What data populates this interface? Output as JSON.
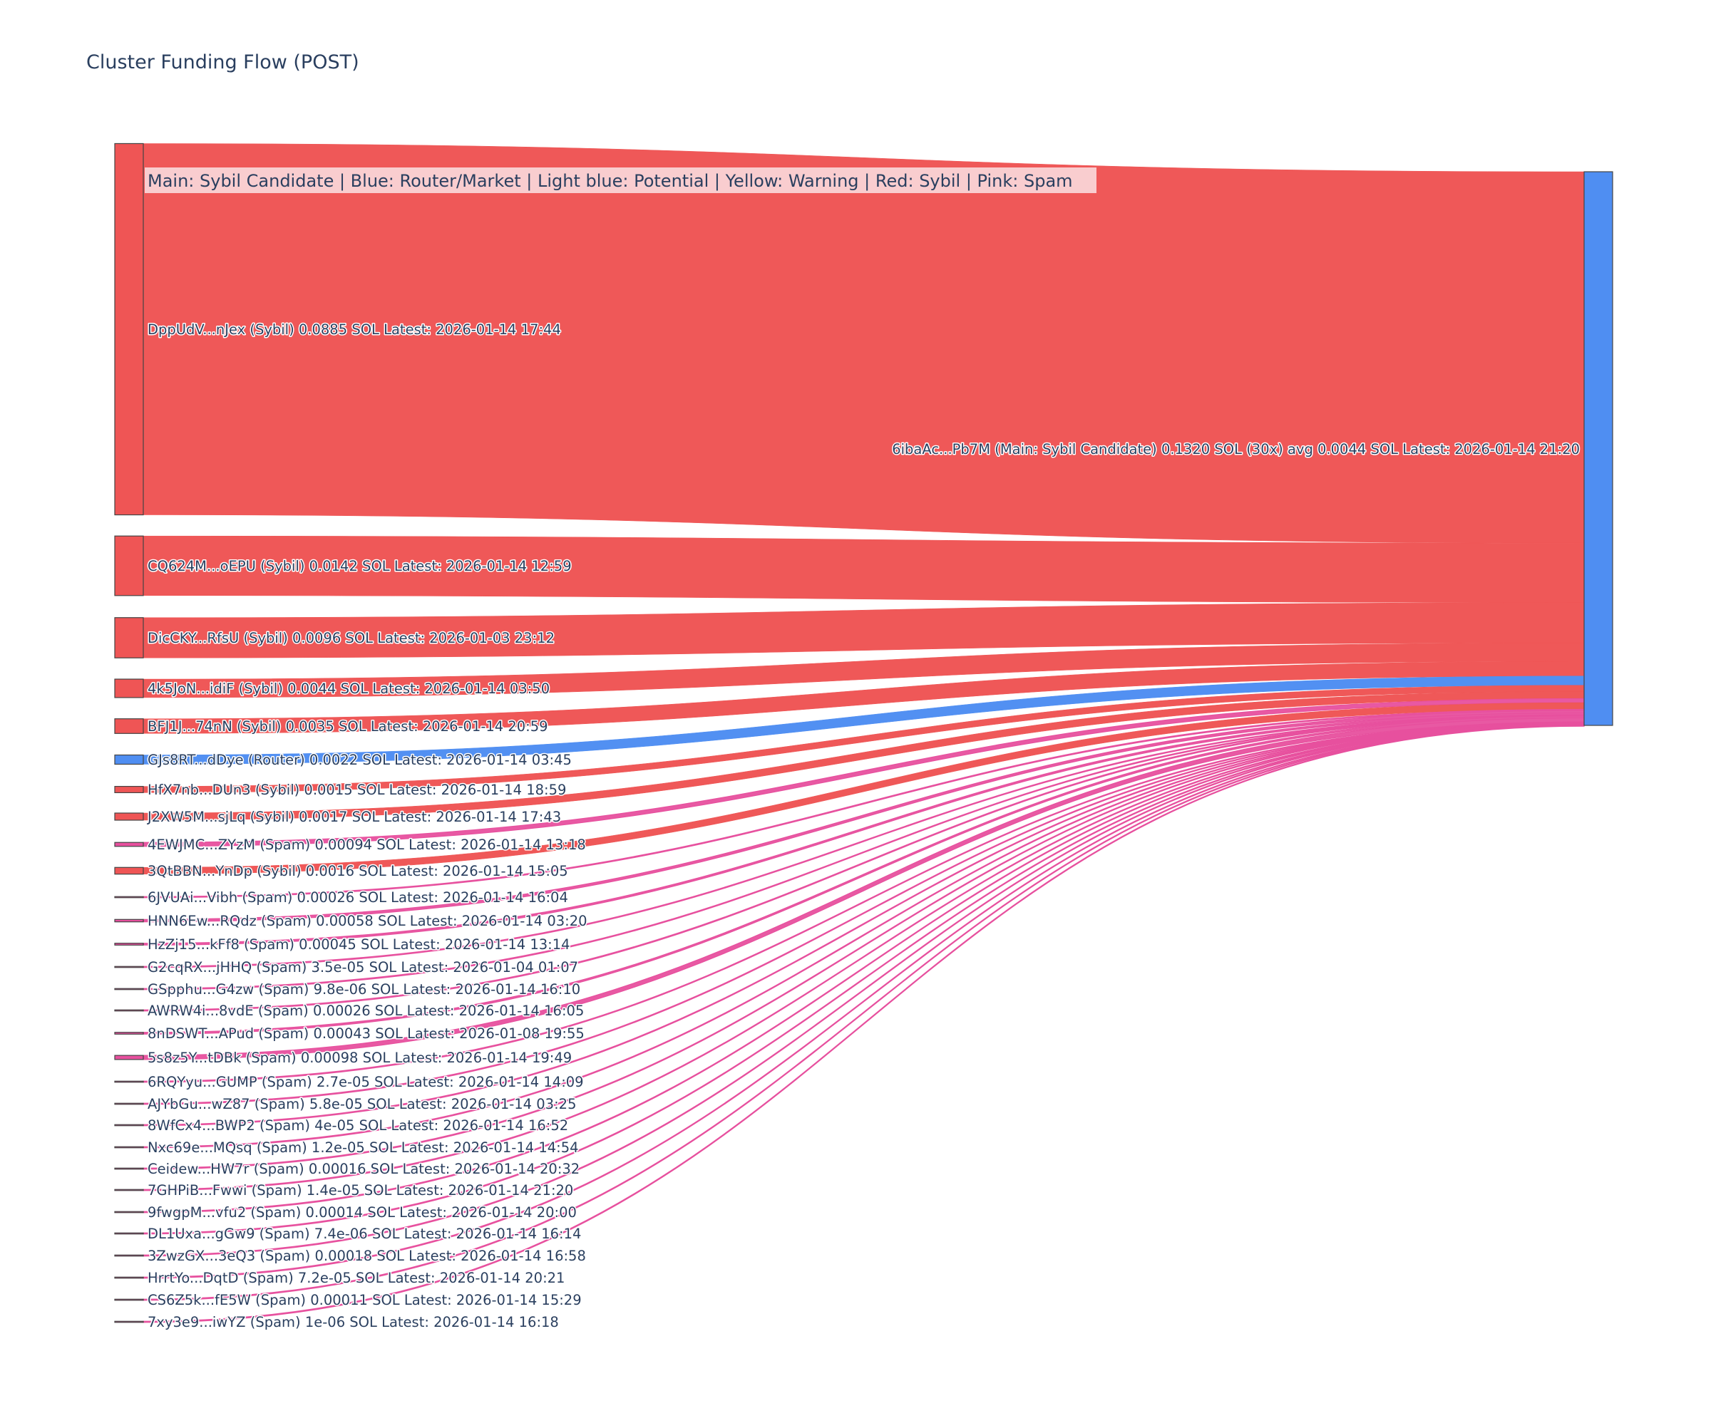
{
  "title": "Cluster Funding Flow (POST)",
  "legend": "Main: Sybil Candidate  |  Blue: Router/Market | Light blue: Potential | Yellow: Warning | Red: Sybil | Pink: Spam",
  "colors": {
    "sybil": "#ef5555",
    "router": "#4f8ef2",
    "spam": "#e7509e",
    "legend_bg": "#fadadd",
    "text": "#2a3f5f",
    "node_border": "#444444"
  },
  "target": {
    "label": "6ibaAc...Pb7M (Main: Sybil Candidate) 0.1320 SOL (30x) avg 0.0044 SOL Latest: 2026-01-14 21:20",
    "type": "router"
  },
  "sources": [
    {
      "label": "DppUdV...nJex (Sybil) 0.0885 SOL Latest: 2026-01-14 17:44",
      "type": "sybil",
      "value": 0.0885
    },
    {
      "label": "CQ624M...oEPU (Sybil) 0.0142 SOL Latest: 2026-01-14 12:59",
      "type": "sybil",
      "value": 0.0142
    },
    {
      "label": "DicCKY...RfsU (Sybil) 0.0096 SOL Latest: 2026-01-03 23:12",
      "type": "sybil",
      "value": 0.0096
    },
    {
      "label": "4k5JoN...idiF (Sybil) 0.0044 SOL Latest: 2026-01-14 03:50",
      "type": "sybil",
      "value": 0.0044
    },
    {
      "label": "BFJ1J...74nN (Sybil) 0.0035 SOL Latest: 2026-01-14 20:59",
      "type": "sybil",
      "value": 0.0035
    },
    {
      "label": "GJs8RT...dDye (Router) 0.0022 SOL Latest: 2026-01-14 03:45",
      "type": "router",
      "value": 0.0022
    },
    {
      "label": "HfX7nb...DUn3 (Sybil) 0.0015 SOL Latest: 2026-01-14 18:59",
      "type": "sybil",
      "value": 0.0015
    },
    {
      "label": "J2XW5M...sjLq (Sybil) 0.0017 SOL Latest: 2026-01-14 17:43",
      "type": "sybil",
      "value": 0.0017
    },
    {
      "label": "4EWJMC...ZYzM (Spam) 0.00094 SOL Latest: 2026-01-14 13:18",
      "type": "spam",
      "value": 0.00094
    },
    {
      "label": "3QtBBN...YnDp (Sybil) 0.0016 SOL Latest: 2026-01-14 15:05",
      "type": "sybil",
      "value": 0.0016
    },
    {
      "label": "6JVUAi...Vibh (Spam) 0.00026 SOL Latest: 2026-01-14 16:04",
      "type": "spam",
      "value": 0.00026
    },
    {
      "label": "HNN6Ew...RQdz (Spam) 0.00058 SOL Latest: 2026-01-14 03:20",
      "type": "spam",
      "value": 0.00058
    },
    {
      "label": "HzZj15...kFf8 (Spam) 0.00045 SOL Latest: 2026-01-14 13:14",
      "type": "spam",
      "value": 0.00045
    },
    {
      "label": "G2cqRX...jHHQ (Spam) 3.5e-05 SOL Latest: 2026-01-04 01:07",
      "type": "spam",
      "value": 3.5e-05
    },
    {
      "label": "GSpphu...G4zw (Spam) 9.8e-06 SOL Latest: 2026-01-14 16:10",
      "type": "spam",
      "value": 9.8e-06
    },
    {
      "label": "AWRW4i...8vdE (Spam) 0.00026 SOL Latest: 2026-01-14 16:05",
      "type": "spam",
      "value": 0.00026
    },
    {
      "label": "8nDSWT...APud (Spam) 0.00043 SOL Latest: 2026-01-08 19:55",
      "type": "spam",
      "value": 0.00043
    },
    {
      "label": "5s8z5Y...tDBk (Spam) 0.00098 SOL Latest: 2026-01-14 19:49",
      "type": "spam",
      "value": 0.00098
    },
    {
      "label": "6RQYyu...GUMP (Spam) 2.7e-05 SOL Latest: 2026-01-14 14:09",
      "type": "spam",
      "value": 2.7e-05
    },
    {
      "label": "AJYbGu...wZ87 (Spam) 5.8e-05 SOL Latest: 2026-01-14 03:25",
      "type": "spam",
      "value": 5.8e-05
    },
    {
      "label": "8WfCx4...BWP2 (Spam) 4e-05 SOL Latest: 2026-01-14 16:52",
      "type": "spam",
      "value": 4e-05
    },
    {
      "label": "Nxc69e...MQsq (Spam) 1.2e-05 SOL Latest: 2026-01-14 14:54",
      "type": "spam",
      "value": 1.2e-05
    },
    {
      "label": "Ceidew...HW7r (Spam) 0.00016 SOL Latest: 2026-01-14 20:32",
      "type": "spam",
      "value": 0.00016
    },
    {
      "label": "7GHPiB...Fwwi (Spam) 1.4e-05 SOL Latest: 2026-01-14 21:20",
      "type": "spam",
      "value": 1.4e-05
    },
    {
      "label": "9fwgpM...vfu2 (Spam) 0.00014 SOL Latest: 2026-01-14 20:00",
      "type": "spam",
      "value": 0.00014
    },
    {
      "label": "DL1Uxa...gGw9 (Spam) 7.4e-06 SOL Latest: 2026-01-14 16:14",
      "type": "spam",
      "value": 7.4e-06
    },
    {
      "label": "3ZwzGX...3eQ3 (Spam) 0.00018 SOL Latest: 2026-01-14 16:58",
      "type": "spam",
      "value": 0.00018
    },
    {
      "label": "HrrtYo...DqtD (Spam) 7.2e-05 SOL Latest: 2026-01-14 20:21",
      "type": "spam",
      "value": 7.2e-05
    },
    {
      "label": "CS6Z5k...fE5W (Spam) 0.00011 SOL Latest: 2026-01-14 15:29",
      "type": "spam",
      "value": 0.00011
    },
    {
      "label": "7xy3e9...iwYZ (Spam) 1e-06 SOL Latest: 2026-01-14 16:18",
      "type": "spam",
      "value": 1e-06
    }
  ]
}
